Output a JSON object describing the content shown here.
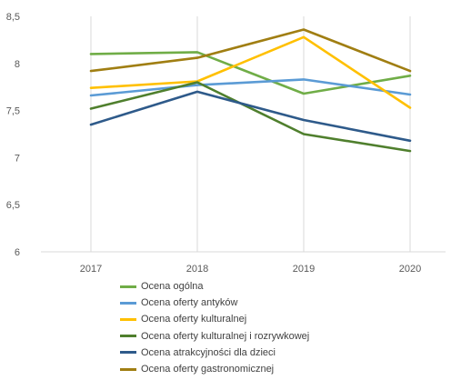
{
  "chart_data": {
    "type": "line",
    "categories": [
      "2017",
      "2018",
      "2019",
      "2020"
    ],
    "ylim": [
      6,
      8.5
    ],
    "yticks": [
      "6",
      "6,5",
      "7",
      "7,5",
      "8",
      "8,5"
    ],
    "grid": "vertical",
    "legend_position": "bottom",
    "series": [
      {
        "name": "Ocena ogólna",
        "color": "#70ad47",
        "values": [
          8.1,
          8.12,
          7.68,
          7.87
        ]
      },
      {
        "name": "Ocena oferty antyków",
        "color": "#5b9bd5",
        "values": [
          7.66,
          7.77,
          7.83,
          7.67
        ]
      },
      {
        "name": "Ocena oferty kulturalnej",
        "color": "#ffc000",
        "values": [
          7.74,
          7.81,
          8.28,
          7.53
        ]
      },
      {
        "name": "Ocena oferty kulturalnej i rozrywkowej",
        "color": "#4f7f2d",
        "values": [
          7.52,
          7.8,
          7.25,
          7.07
        ]
      },
      {
        "name": "Ocena atrakcyjności dla dzieci",
        "color": "#2e5a8a",
        "values": [
          7.35,
          7.7,
          7.4,
          7.18
        ]
      },
      {
        "name": "Ocena oferty gastronomicznej",
        "color": "#a07e12",
        "values": [
          7.92,
          8.06,
          8.36,
          7.92
        ]
      }
    ]
  }
}
